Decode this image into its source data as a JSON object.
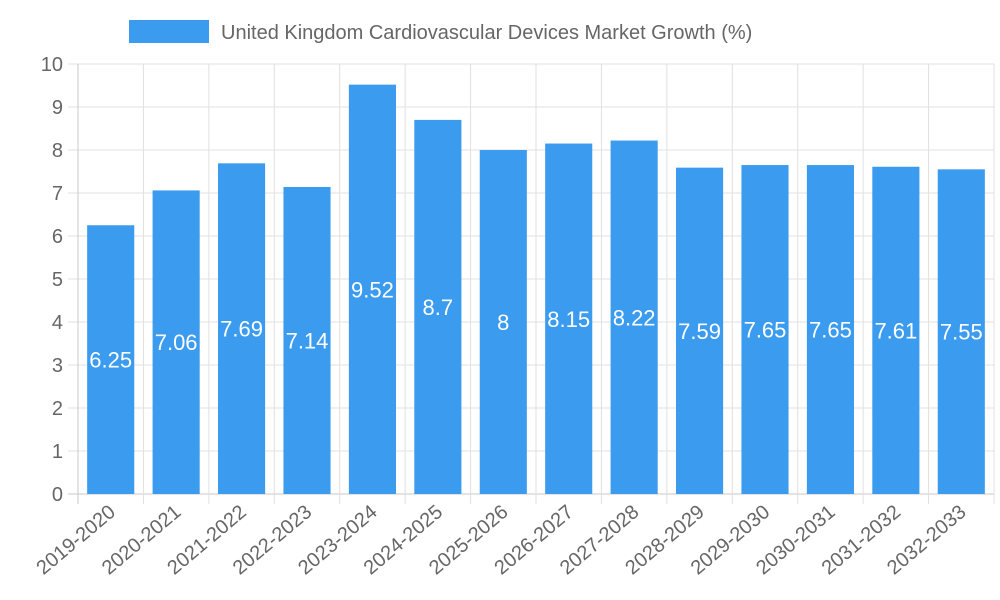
{
  "chart_data": {
    "type": "bar",
    "title": "",
    "legend": [
      "United Kingdom Cardiovascular Devices Market Growth (%)"
    ],
    "legend_position": "top-center",
    "categories": [
      "2019-2020",
      "2020-2021",
      "2021-2022",
      "2022-2023",
      "2023-2024",
      "2024-2025",
      "2025-2026",
      "2026-2027",
      "2027-2028",
      "2028-2029",
      "2029-2030",
      "2030-2031",
      "2031-2032",
      "2032-2033"
    ],
    "series": [
      {
        "name": "United Kingdom Cardiovascular Devices Market Growth (%)",
        "values": [
          6.25,
          7.06,
          7.69,
          7.14,
          9.52,
          8.7,
          8,
          8.15,
          8.22,
          7.59,
          7.65,
          7.65,
          7.61,
          7.55
        ],
        "color": "#3a9bef"
      }
    ],
    "xlabel": "",
    "ylabel": "",
    "ylim": [
      0,
      10
    ],
    "yticks": [
      0,
      1,
      2,
      3,
      4,
      5,
      6,
      7,
      8,
      9,
      10
    ],
    "grid": true,
    "data_labels": true
  },
  "colors": {
    "bar": "#3a9bef",
    "grid": "#e0e0e0",
    "axis": "#c8c8c8",
    "text": "#666666",
    "label": "#ffffff"
  }
}
